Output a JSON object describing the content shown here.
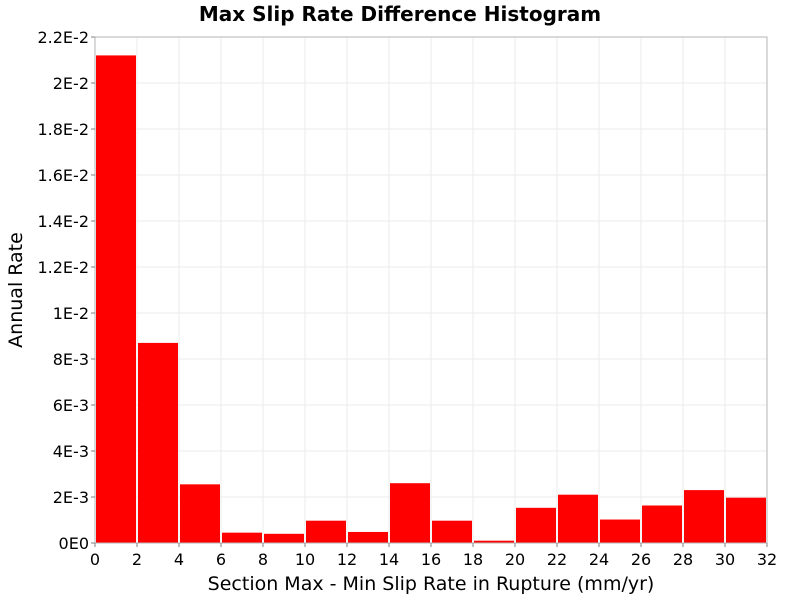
{
  "chart_data": {
    "type": "bar",
    "title": "Max Slip Rate Difference Histogram",
    "xlabel": "Section Max - Min Slip Rate in Rupture (mm/yr)",
    "ylabel": "Annual Rate",
    "xlim": [
      0,
      32
    ],
    "ylim": [
      0,
      0.022
    ],
    "bin_width": 2,
    "x": [
      1,
      3,
      5,
      7,
      9,
      11,
      13,
      15,
      17,
      19,
      21,
      23,
      25,
      27,
      29,
      31
    ],
    "values": [
      0.0212,
      0.0087,
      0.00255,
      0.00045,
      0.0004,
      0.00097,
      0.00048,
      0.0026,
      0.00097,
      0.0001,
      0.00153,
      0.0021,
      0.00102,
      0.00163,
      0.0023,
      0.00197
    ],
    "x_ticks": [
      {
        "value": 0,
        "label": "0"
      },
      {
        "value": 2,
        "label": "2"
      },
      {
        "value": 4,
        "label": "4"
      },
      {
        "value": 6,
        "label": "6"
      },
      {
        "value": 8,
        "label": "8"
      },
      {
        "value": 10,
        "label": "10"
      },
      {
        "value": 12,
        "label": "12"
      },
      {
        "value": 14,
        "label": "14"
      },
      {
        "value": 16,
        "label": "16"
      },
      {
        "value": 18,
        "label": "18"
      },
      {
        "value": 20,
        "label": "20"
      },
      {
        "value": 22,
        "label": "22"
      },
      {
        "value": 24,
        "label": "24"
      },
      {
        "value": 26,
        "label": "26"
      },
      {
        "value": 28,
        "label": "28"
      },
      {
        "value": 30,
        "label": "30"
      },
      {
        "value": 32,
        "label": "32"
      }
    ],
    "y_ticks": [
      {
        "value": 0,
        "label": "0E0"
      },
      {
        "value": 0.002,
        "label": "2E-3"
      },
      {
        "value": 0.004,
        "label": "4E-3"
      },
      {
        "value": 0.006,
        "label": "6E-3"
      },
      {
        "value": 0.008,
        "label": "8E-3"
      },
      {
        "value": 0.01,
        "label": "1E-2"
      },
      {
        "value": 0.012,
        "label": "1.2E-2"
      },
      {
        "value": 0.014,
        "label": "1.4E-2"
      },
      {
        "value": 0.016,
        "label": "1.6E-2"
      },
      {
        "value": 0.018,
        "label": "1.8E-2"
      },
      {
        "value": 0.02,
        "label": "2E-2"
      },
      {
        "value": 0.022,
        "label": "2.2E-2"
      }
    ],
    "grid": true,
    "bar_color": "#ff0000",
    "grid_color": "#ebebeb",
    "frame_color": "#b4b4b4"
  }
}
